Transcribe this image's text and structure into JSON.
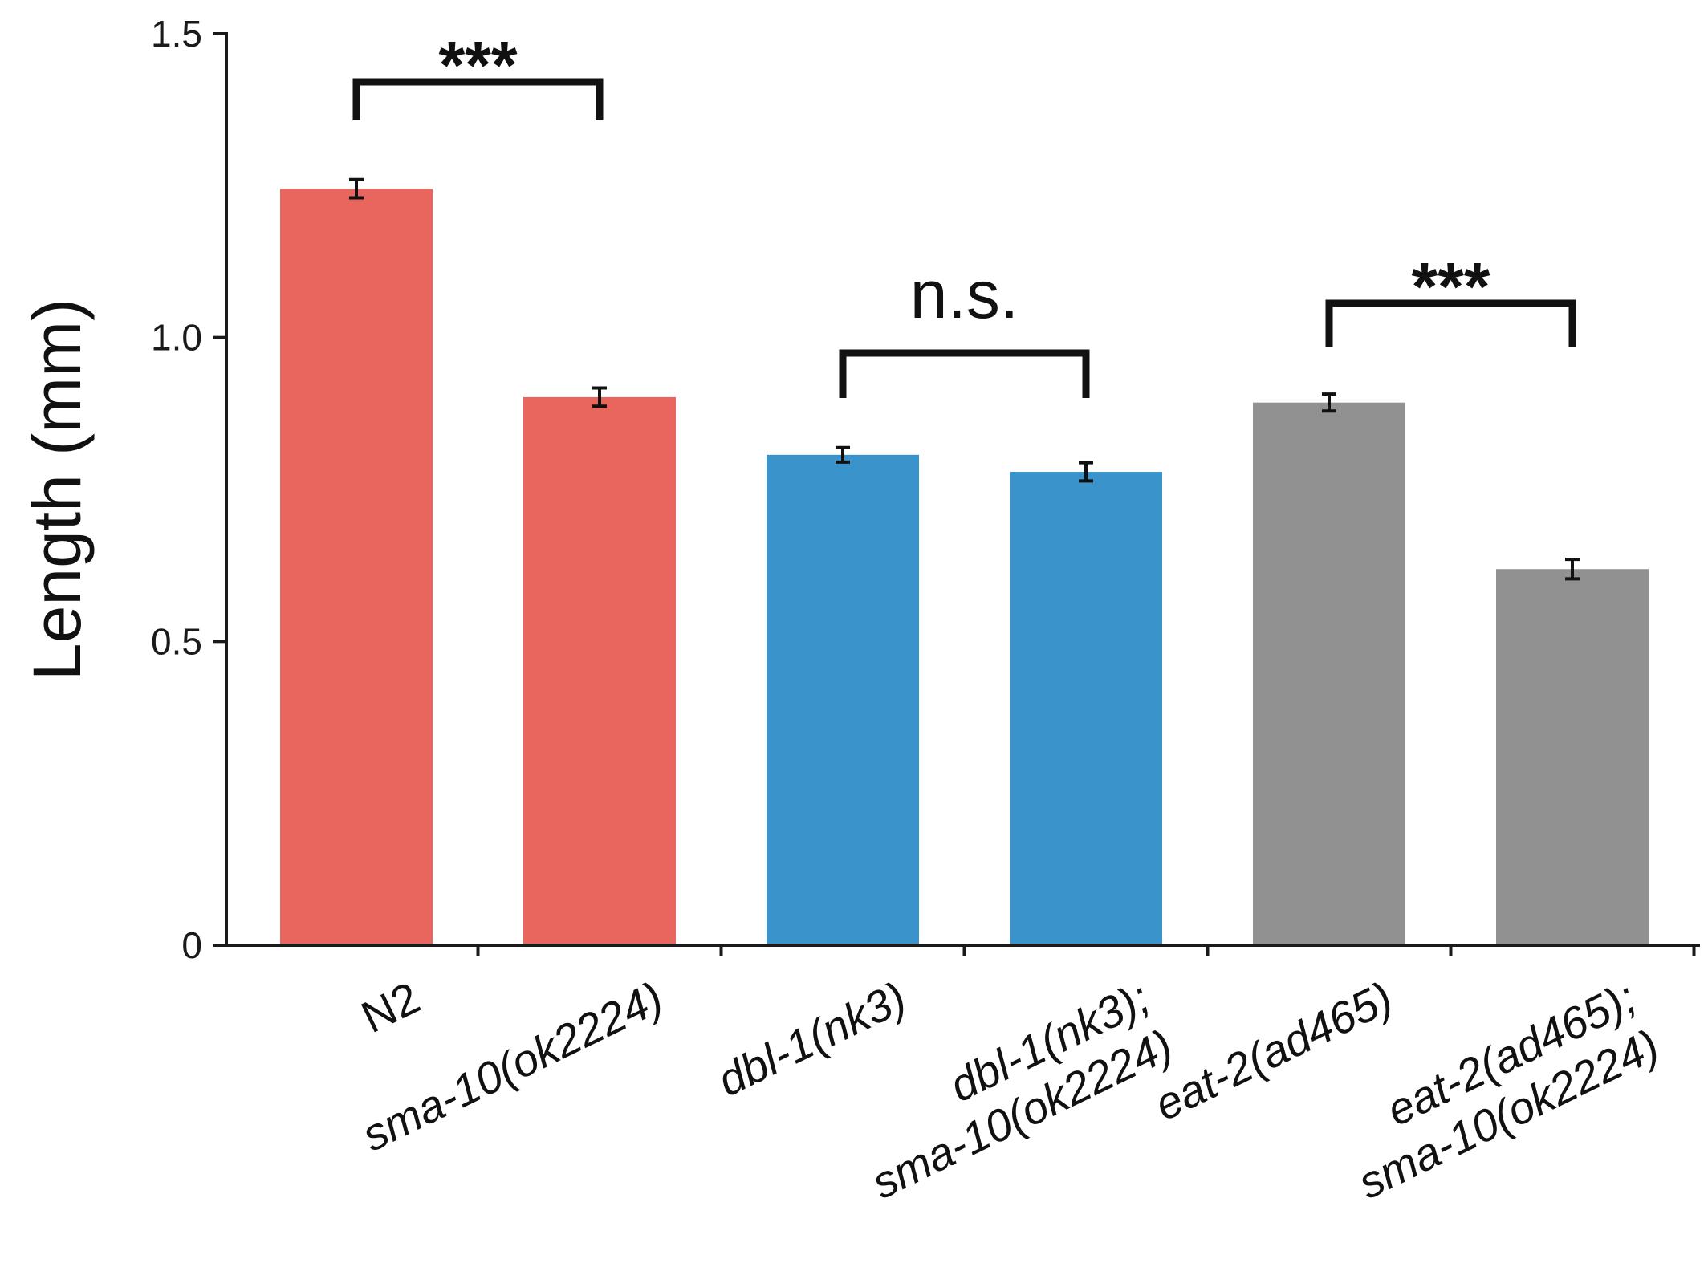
{
  "chart_data": {
    "type": "bar",
    "title": "",
    "xlabel": "",
    "ylabel": "Length (mm)",
    "ylim": [
      0,
      1.5
    ],
    "yticks": [
      {
        "value": 0,
        "label": "0"
      },
      {
        "value": 0.5,
        "label": "0.5"
      },
      {
        "value": 1.0,
        "label": "1.0"
      },
      {
        "value": 1.5,
        "label": "1.5"
      }
    ],
    "categories": [
      {
        "lines": [
          "N2"
        ],
        "italic": false
      },
      {
        "lines": [
          "sma-10(ok2224)"
        ],
        "italic": true
      },
      {
        "lines": [
          "dbl-1(nk3)"
        ],
        "italic": true
      },
      {
        "lines": [
          "dbl-1(nk3);",
          "sma-10(ok2224)"
        ],
        "italic": true
      },
      {
        "lines": [
          "eat-2(ad465)"
        ],
        "italic": true
      },
      {
        "lines": [
          "eat-2(ad465);",
          "sma-10(ok2224)"
        ],
        "italic": true
      }
    ],
    "values": [
      1.245,
      0.902,
      0.807,
      0.779,
      0.893,
      0.619
    ],
    "errors": [
      0.015,
      0.015,
      0.012,
      0.015,
      0.014,
      0.016
    ],
    "colors": [
      "#e8665e",
      "#e8665e",
      "#3a94cb",
      "#3a94cb",
      "#919191",
      "#919191"
    ],
    "comparisons": [
      {
        "from": 0,
        "to": 1,
        "label": "***"
      },
      {
        "from": 2,
        "to": 3,
        "label": "n.s."
      },
      {
        "from": 4,
        "to": 5,
        "label": "***"
      }
    ]
  }
}
